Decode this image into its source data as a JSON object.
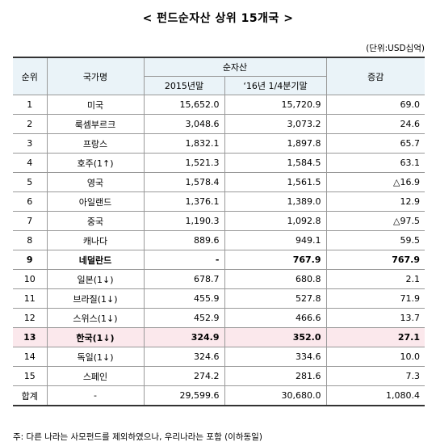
{
  "title": "< 펀드순자산 상위 15개국 >",
  "unit": "(단위:USD십억)",
  "headers": {
    "rank": "순위",
    "country": "국가명",
    "net_assets": "순자산",
    "year2015": "2015년말",
    "q1_2016": "‘16년 1/4분기말",
    "change": "증감"
  },
  "rows": [
    {
      "rank": "1",
      "country": "미국",
      "a": "15,652.0",
      "b": "15,720.9",
      "chg": "69.0"
    },
    {
      "rank": "2",
      "country": "룩셈부르크",
      "a": "3,048.6",
      "b": "3,073.2",
      "chg": "24.6"
    },
    {
      "rank": "3",
      "country": "프랑스",
      "a": "1,832.1",
      "b": "1,897.8",
      "chg": "65.7"
    },
    {
      "rank": "4",
      "country": "호주(1↑)",
      "a": "1,521.3",
      "b": "1,584.5",
      "chg": "63.1"
    },
    {
      "rank": "5",
      "country": "영국",
      "a": "1,578.4",
      "b": "1,561.5",
      "chg": "△16.9"
    },
    {
      "rank": "6",
      "country": "아일랜드",
      "a": "1,376.1",
      "b": "1,389.0",
      "chg": "12.9"
    },
    {
      "rank": "7",
      "country": "중국",
      "a": "1,190.3",
      "b": "1,092.8",
      "chg": "△97.5"
    },
    {
      "rank": "8",
      "country": "캐나다",
      "a": "889.6",
      "b": "949.1",
      "chg": "59.5"
    },
    {
      "rank": "9",
      "country": "네덜란드",
      "a": "-",
      "b": "767.9",
      "chg": "767.9"
    },
    {
      "rank": "10",
      "country": "일본(1↓)",
      "a": "678.7",
      "b": "680.8",
      "chg": "2.1"
    },
    {
      "rank": "11",
      "country": "브라질(1↓)",
      "a": "455.9",
      "b": "527.8",
      "chg": "71.9"
    },
    {
      "rank": "12",
      "country": "스위스(1↓)",
      "a": "452.9",
      "b": "466.6",
      "chg": "13.7"
    },
    {
      "rank": "13",
      "country": "한국(1↓)",
      "a": "324.9",
      "b": "352.0",
      "chg": "27.1"
    },
    {
      "rank": "14",
      "country": "독일(1↓)",
      "a": "324.6",
      "b": "334.6",
      "chg": "10.0"
    },
    {
      "rank": "15",
      "country": "스페인",
      "a": "274.2",
      "b": "281.6",
      "chg": "7.3"
    }
  ],
  "total": {
    "label": "합계",
    "country": "-",
    "a": "29,599.6",
    "b": "30,680.0",
    "chg": "1,080.4"
  },
  "note": "주: 다른 나라는 사모펀드를 제외하였으나, 우리나라는 포함 (이하동일)",
  "colors": {
    "header_bg": "#eaf3f8",
    "korea_highlight": "#fbe8ec"
  }
}
